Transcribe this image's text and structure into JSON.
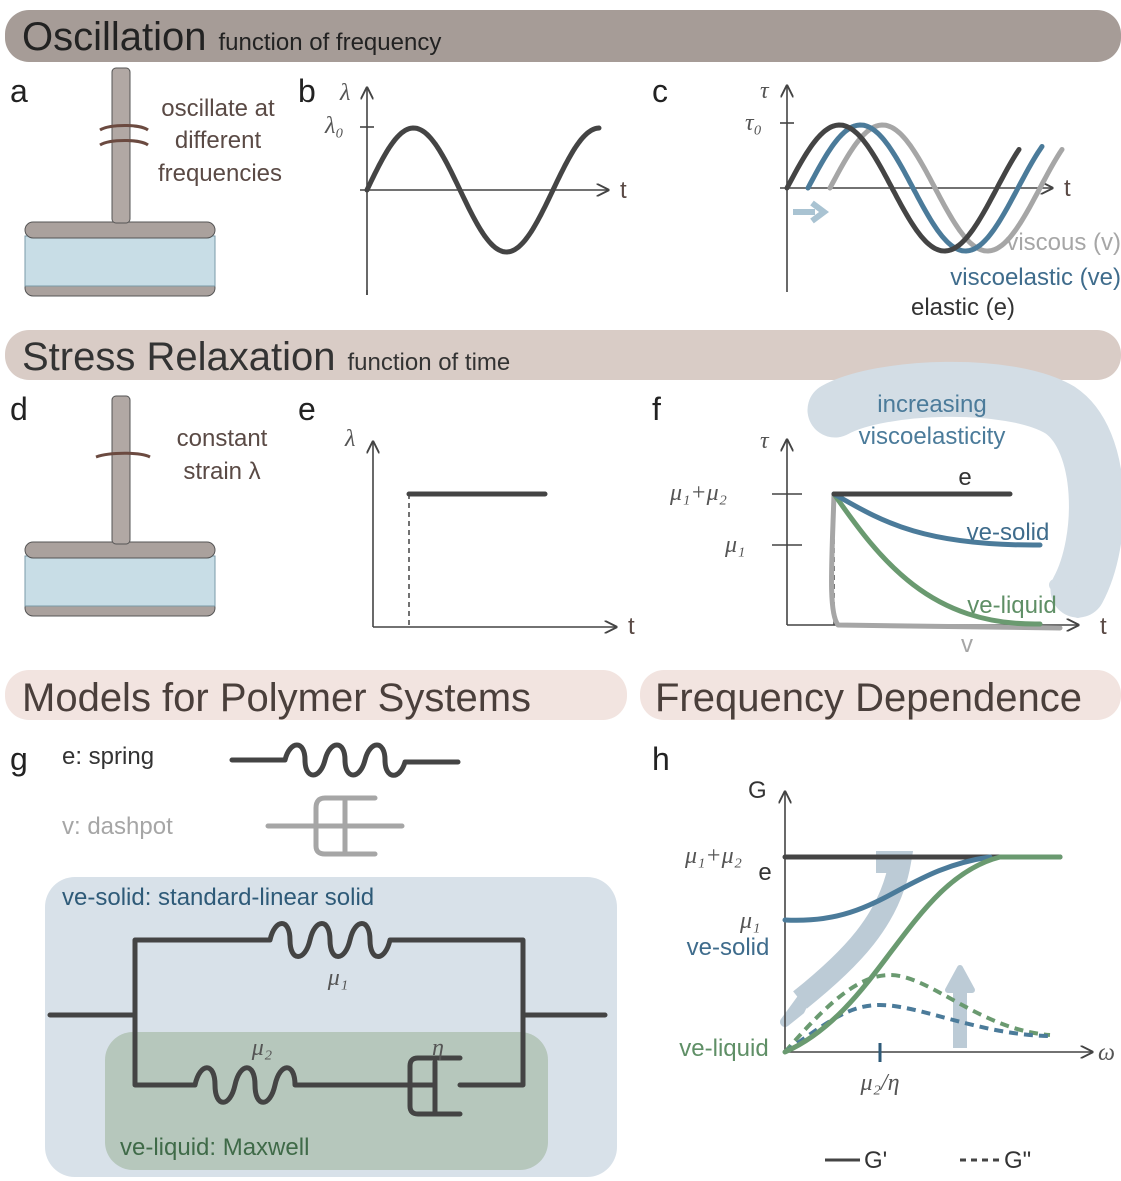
{
  "sections": {
    "oscillation": {
      "title": "Oscillation",
      "subtitle": "function of frequency"
    },
    "stress_relaxation": {
      "title": "Stress Relaxation",
      "subtitle": "function of time"
    },
    "models": {
      "title": "Models for Polymer Systems"
    },
    "frequency": {
      "title": "Frequency Dependence"
    }
  },
  "panels": {
    "a": {
      "letter": "a",
      "label": [
        "oscillate at",
        "different",
        "frequencies"
      ]
    },
    "b": {
      "letter": "b",
      "y_axis": "λ",
      "amplitude": "λ₀",
      "x_axis": "t"
    },
    "c": {
      "letter": "c",
      "y_axis": "τ",
      "amplitude": "τ₀",
      "x_axis": "t",
      "curves": [
        "viscous (v)",
        "viscoelastic (ve)",
        "elastic (e)"
      ]
    },
    "d": {
      "letter": "d",
      "label": [
        "constant",
        "strain λ"
      ]
    },
    "e": {
      "letter": "e",
      "y_axis": "λ",
      "x_axis": "t"
    },
    "f": {
      "letter": "f",
      "arrow": [
        "increasing",
        "viscoelasticity"
      ],
      "y_axis": "τ",
      "ticks": [
        "μ₁+μ₂",
        "μ₁"
      ],
      "x_axis": "t",
      "curves": [
        "e",
        "ve-solid",
        "ve-liquid",
        "v"
      ]
    },
    "g": {
      "letter": "g",
      "spring": "e: spring",
      "dashpot": "v: dashpot",
      "solid_box": "ve-solid: standard-linear solid",
      "mu1": "μ₁",
      "mu2": "μ₂",
      "eta": "η",
      "liquid_box": "ve-liquid: Maxwell"
    },
    "h": {
      "letter": "h",
      "y_axis": "G",
      "ticks": [
        "μ₁+μ₂",
        "μ₁"
      ],
      "curves": [
        "e",
        "ve-solid",
        "ve-liquid"
      ],
      "x_axis": "ω",
      "x_tick": "μ₂/η",
      "legend": [
        "G'",
        "G\""
      ]
    }
  }
}
